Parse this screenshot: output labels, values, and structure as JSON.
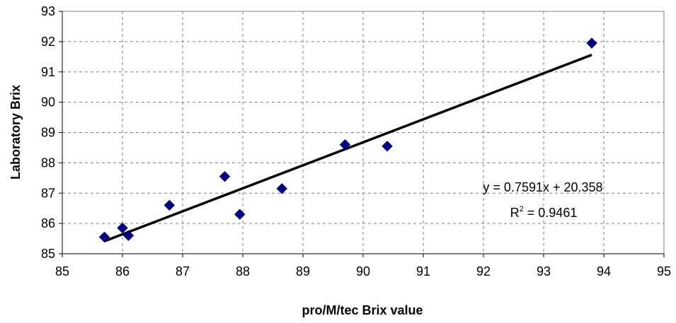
{
  "chart_data": {
    "type": "scatter",
    "title": "",
    "xlabel": "pro/M/tec Brix value",
    "ylabel": "Laboratory Brix",
    "xlim": [
      85,
      95
    ],
    "ylim": [
      85,
      93
    ],
    "x_ticks": [
      "85",
      "86",
      "87",
      "88",
      "89",
      "90",
      "91",
      "92",
      "93",
      "94",
      "95"
    ],
    "y_ticks": [
      "85",
      "86",
      "87",
      "88",
      "89",
      "90",
      "91",
      "92",
      "93"
    ],
    "grid": true,
    "legend": "none",
    "series": [
      {
        "marker": "diamond",
        "color": "#000080",
        "points": [
          {
            "x": 85.7,
            "y": 85.55
          },
          {
            "x": 86.0,
            "y": 85.85
          },
          {
            "x": 86.1,
            "y": 85.6
          },
          {
            "x": 86.78,
            "y": 86.6
          },
          {
            "x": 87.7,
            "y": 87.55
          },
          {
            "x": 87.95,
            "y": 86.3
          },
          {
            "x": 88.65,
            "y": 87.15
          },
          {
            "x": 89.7,
            "y": 88.6
          },
          {
            "x": 90.4,
            "y": 88.55
          },
          {
            "x": 93.8,
            "y": 91.95
          }
        ]
      }
    ],
    "trendline": {
      "slope": 0.7591,
      "intercept": 20.358,
      "x_range": [
        85.7,
        93.8
      ],
      "color": "#000000",
      "equation_label": "y = 0.7591x + 20.358",
      "r2_prefix": "R",
      "r2_superscript": "2",
      "r2_suffix": " = 0.9461"
    },
    "colors": {
      "marker": "#000080",
      "trendline": "#000000",
      "grid": "#808080",
      "axis": "#000000",
      "plot_border": "#808080"
    }
  }
}
